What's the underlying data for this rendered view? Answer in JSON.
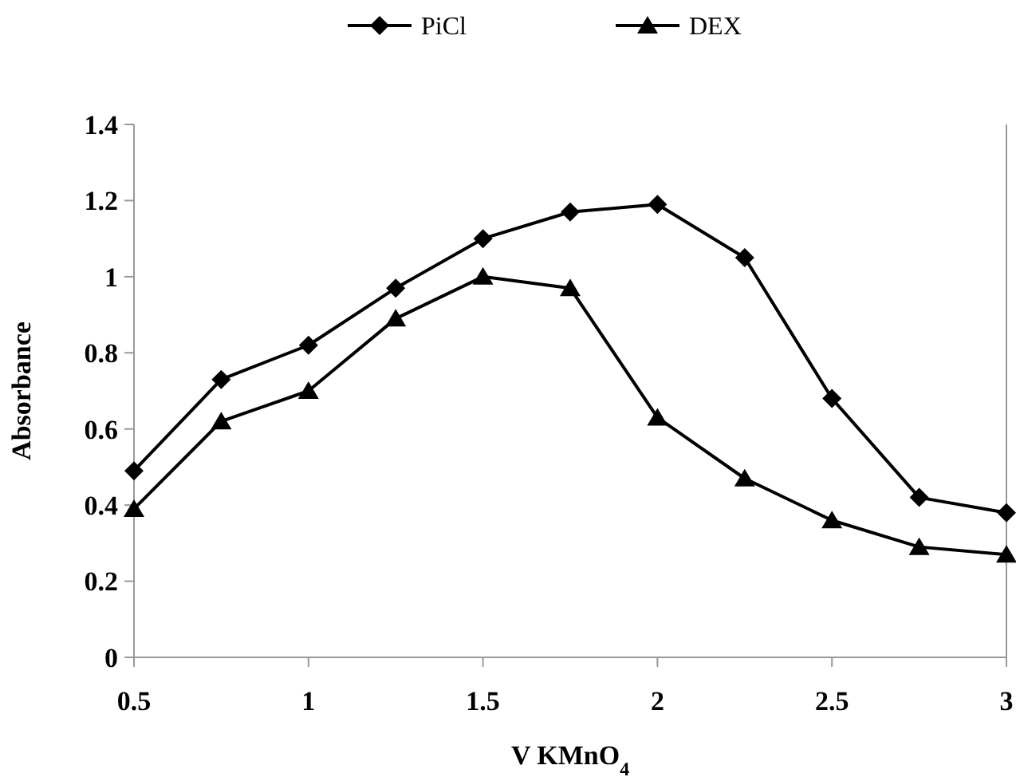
{
  "chart_data": {
    "type": "line",
    "xlabel": "V KMnO$_{4}$",
    "ylabel": "Absorbance",
    "x": [
      0.5,
      0.75,
      1,
      1.25,
      1.5,
      1.75,
      2,
      2.25,
      2.5,
      2.75,
      3
    ],
    "series": [
      {
        "name": "PiCl",
        "color": "#000000",
        "marker": "diamond",
        "values": [
          0.49,
          0.73,
          0.82,
          0.97,
          1.1,
          1.17,
          1.19,
          1.05,
          0.68,
          0.42,
          0.38
        ]
      },
      {
        "name": "DEX",
        "color": "#000000",
        "marker": "triangle",
        "values": [
          0.39,
          0.62,
          0.7,
          0.89,
          1.0,
          0.97,
          0.63,
          0.47,
          0.36,
          0.29,
          0.27
        ]
      }
    ],
    "xlim": [
      0.5,
      3
    ],
    "xticks": [
      0.5,
      1,
      1.5,
      2,
      2.5,
      3
    ],
    "ylim": [
      0,
      1.4
    ],
    "yticks": [
      0,
      0.2,
      0.4,
      0.6,
      0.8,
      1,
      1.2,
      1.4
    ],
    "grid": false,
    "legend": "top",
    "line_style": "solid"
  }
}
